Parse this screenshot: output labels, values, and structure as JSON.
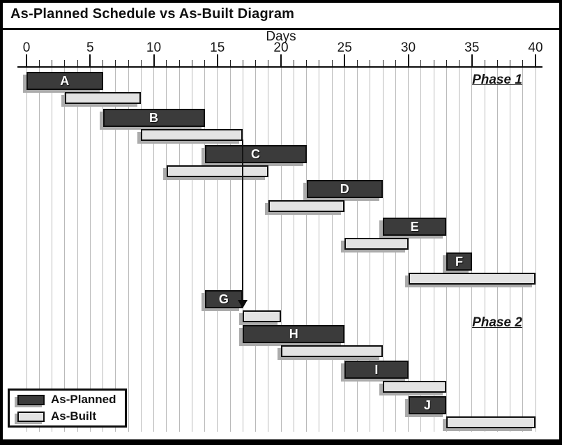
{
  "window": {
    "title": "As-Planned Schedule vs As-Built Diagram"
  },
  "axis": {
    "label": "Days"
  },
  "phase_labels": {
    "phase1": "Phase 1",
    "phase2": "Phase 2"
  },
  "legend": {
    "planned_label": "As-Planned",
    "built_label": "As-Built"
  },
  "colors": {
    "planned_bar": "#3b3b3b",
    "built_bar": "#e3e3e3",
    "bar_border": "#0e0e0e",
    "bar_shadow": "#ababab",
    "gridline": "#b9b9b9",
    "frame": "#000000",
    "background": "#ffffff"
  },
  "chart_data": {
    "type": "gantt",
    "title": "As-Planned Schedule vs As-Built Diagram",
    "xlabel": "Days",
    "xlim": [
      0,
      40
    ],
    "major_ticks": [
      0,
      5,
      10,
      15,
      20,
      25,
      30,
      35,
      40
    ],
    "minor_tick_interval": 1,
    "grid": "vertical line at every day from 0 to 40",
    "legend_position": "bottom-left",
    "series_names": [
      "As-Planned",
      "As-Built"
    ],
    "tasks": [
      {
        "name": "A",
        "planned_start": 0,
        "planned_end": 6,
        "built_start": 3,
        "built_end": 9
      },
      {
        "name": "B",
        "planned_start": 6,
        "planned_end": 14,
        "built_start": 9,
        "built_end": 17
      },
      {
        "name": "C",
        "planned_start": 14,
        "planned_end": 22,
        "built_start": 11,
        "built_end": 19
      },
      {
        "name": "D",
        "planned_start": 22,
        "planned_end": 28,
        "built_start": 19,
        "built_end": 25
      },
      {
        "name": "E",
        "planned_start": 28,
        "planned_end": 33,
        "built_start": 25,
        "built_end": 30
      },
      {
        "name": "F",
        "planned_start": 33,
        "planned_end": 35,
        "built_start": 30,
        "built_end": 40
      },
      {
        "name": "G",
        "planned_start": 14,
        "planned_end": 17,
        "built_start": 17,
        "built_end": 20
      },
      {
        "name": "H",
        "planned_start": 17,
        "planned_end": 25,
        "built_start": 20,
        "built_end": 28
      },
      {
        "name": "I",
        "planned_start": 25,
        "planned_end": 30,
        "built_start": 28,
        "built_end": 33
      },
      {
        "name": "J",
        "planned_start": 30,
        "planned_end": 33,
        "built_start": 33,
        "built_end": 40
      }
    ],
    "annotations": [
      {
        "type": "phase-label",
        "text": "Phase 1",
        "position": "upper-right"
      },
      {
        "type": "phase-label",
        "text": "Phase 2",
        "position": "middle-right"
      },
      {
        "type": "vertical-arrow",
        "day": 17,
        "from": "end of task B as-built bar",
        "to": "start of task G as-built bar",
        "direction": "down"
      }
    ]
  }
}
